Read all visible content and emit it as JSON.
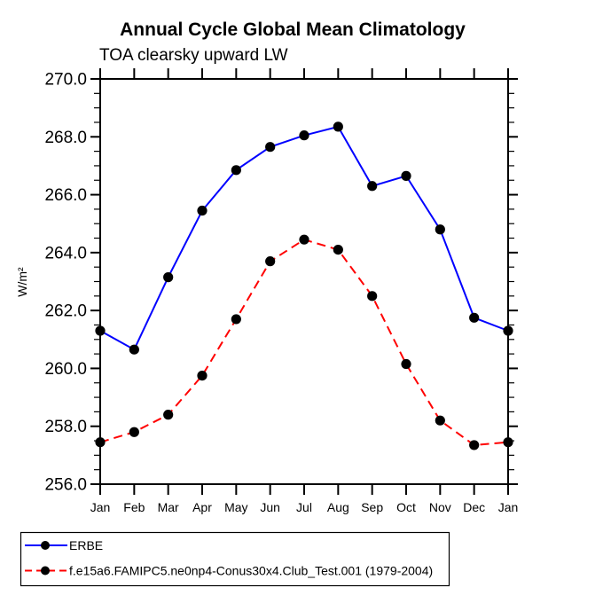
{
  "chart_data": {
    "type": "line",
    "title": "Annual Cycle Global Mean Climatology",
    "subtitle": "TOA clearsky upward LW",
    "ylabel": "W/m²",
    "xlabel": "",
    "categories": [
      "Jan",
      "Feb",
      "Mar",
      "Apr",
      "May",
      "Jun",
      "Jul",
      "Aug",
      "Sep",
      "Oct",
      "Nov",
      "Dec",
      "Jan"
    ],
    "ylim": [
      256.0,
      270.0
    ],
    "ytick_interval": 2.0,
    "yminor_interval": 0.5,
    "ytick_labels": [
      "270.0",
      "268.0",
      "266.0",
      "264.0",
      "262.0",
      "260.0",
      "258.0",
      "256.0"
    ],
    "grid": false,
    "legend_position": "bottom-left",
    "frame_color": "#000000",
    "background_color": "#ffffff",
    "marker": "filled-circle",
    "marker_color": "#000000",
    "series": [
      {
        "name": "ERBE",
        "color": "#0000ff",
        "line_style": "solid",
        "values": [
          261.3,
          260.65,
          263.15,
          265.45,
          266.85,
          267.65,
          268.05,
          268.35,
          266.3,
          266.65,
          264.8,
          261.75,
          261.3
        ]
      },
      {
        "name": "f.e15a6.FAMIPC5.ne0np4-Conus30x4.Club_Test.001 (1979-2004)",
        "color": "#ff0000",
        "line_style": "dashed",
        "values": [
          257.45,
          257.8,
          258.4,
          259.75,
          261.7,
          263.7,
          264.45,
          264.1,
          262.5,
          260.15,
          258.2,
          257.35,
          257.45
        ]
      }
    ]
  }
}
